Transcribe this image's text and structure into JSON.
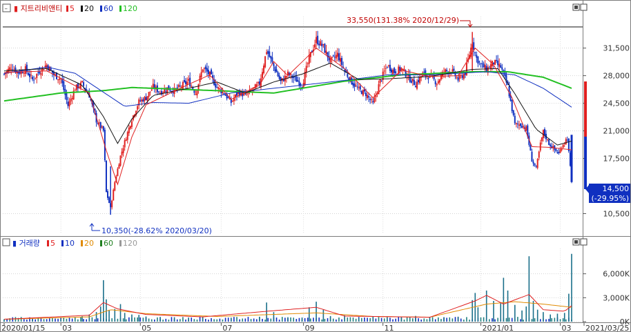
{
  "chart_data": {
    "type": "candlestick",
    "price": {
      "title": "지트리비앤티",
      "ma_legend": [
        {
          "label": "5",
          "color": "#e02020"
        },
        {
          "label": "20",
          "color": "#111111"
        },
        {
          "label": "60",
          "color": "#1030c0"
        },
        {
          "label": "120",
          "color": "#22c022"
        }
      ],
      "y_ticks": [
        "31,500",
        "28,000",
        "24,500",
        "21,000",
        "17,500",
        "10,500"
      ],
      "ylim": [
        8000,
        35500
      ],
      "current_price": "14,500",
      "current_change": "(-29.95%)",
      "high_annotation": "33,550(131.38% 2020/12/29)",
      "low_annotation": "10,350(-28.62% 2020/03/20)",
      "close_path": [
        [
          0,
          28200
        ],
        [
          5,
          29100
        ],
        [
          10,
          28400
        ],
        [
          15,
          28800
        ],
        [
          20,
          27500
        ],
        [
          25,
          28600
        ],
        [
          30,
          29400
        ],
        [
          35,
          28100
        ],
        [
          40,
          27600
        ],
        [
          45,
          24200
        ],
        [
          50,
          26400
        ],
        [
          55,
          27000
        ],
        [
          60,
          25500
        ],
        [
          65,
          22300
        ],
        [
          70,
          21000
        ],
        [
          72,
          13200
        ],
        [
          75,
          11200
        ],
        [
          78,
          14500
        ],
        [
          82,
          17800
        ],
        [
          86,
          20200
        ],
        [
          90,
          22500
        ],
        [
          95,
          24700
        ],
        [
          100,
          25200
        ],
        [
          105,
          26600
        ],
        [
          110,
          25900
        ],
        [
          115,
          26400
        ],
        [
          120,
          26100
        ],
        [
          125,
          26700
        ],
        [
          130,
          27300
        ],
        [
          135,
          25800
        ],
        [
          140,
          29000
        ],
        [
          145,
          28100
        ],
        [
          150,
          26500
        ],
        [
          155,
          25800
        ],
        [
          160,
          24600
        ],
        [
          165,
          25900
        ],
        [
          170,
          25500
        ],
        [
          175,
          26200
        ],
        [
          180,
          27000
        ],
        [
          185,
          31200
        ],
        [
          190,
          29200
        ],
        [
          195,
          27200
        ],
        [
          200,
          28200
        ],
        [
          205,
          27600
        ],
        [
          210,
          26800
        ],
        [
          215,
          30200
        ],
        [
          220,
          32600
        ],
        [
          225,
          31600
        ],
        [
          230,
          29800
        ],
        [
          235,
          30700
        ],
        [
          240,
          28600
        ],
        [
          245,
          27200
        ],
        [
          250,
          26200
        ],
        [
          255,
          25700
        ],
        [
          260,
          24400
        ],
        [
          265,
          27300
        ],
        [
          270,
          29300
        ],
        [
          275,
          28500
        ],
        [
          280,
          28900
        ],
        [
          285,
          27800
        ],
        [
          290,
          26900
        ],
        [
          295,
          28200
        ],
        [
          300,
          27900
        ],
        [
          305,
          27100
        ],
        [
          310,
          28500
        ],
        [
          315,
          28700
        ],
        [
          320,
          27500
        ],
        [
          325,
          28400
        ],
        [
          330,
          32300
        ],
        [
          333,
          30200
        ],
        [
          336,
          29400
        ],
        [
          340,
          28800
        ],
        [
          345,
          29700
        ],
        [
          350,
          29100
        ],
        [
          355,
          26600
        ],
        [
          360,
          21800
        ],
        [
          364,
          21800
        ],
        [
          368,
          21300
        ],
        [
          372,
          17300
        ],
        [
          375,
          16200
        ],
        [
          378,
          19300
        ],
        [
          380,
          20900
        ],
        [
          384,
          19400
        ],
        [
          388,
          18600
        ],
        [
          391,
          18100
        ],
        [
          394,
          19400
        ],
        [
          397,
          20100
        ],
        [
          400,
          14500
        ]
      ],
      "ma5_path": [
        [
          0,
          28400
        ],
        [
          30,
          28600
        ],
        [
          60,
          25800
        ],
        [
          72,
          18500
        ],
        [
          80,
          14200
        ],
        [
          90,
          20200
        ],
        [
          100,
          24300
        ],
        [
          130,
          26900
        ],
        [
          145,
          28100
        ],
        [
          160,
          25000
        ],
        [
          180,
          26800
        ],
        [
          190,
          29800
        ],
        [
          200,
          28000
        ],
        [
          220,
          31500
        ],
        [
          240,
          28900
        ],
        [
          260,
          25200
        ],
        [
          280,
          28700
        ],
        [
          300,
          27900
        ],
        [
          320,
          28000
        ],
        [
          332,
          31500
        ],
        [
          345,
          29400
        ],
        [
          358,
          25200
        ],
        [
          372,
          19000
        ],
        [
          385,
          18900
        ],
        [
          400,
          18600
        ]
      ],
      "ma20_path": [
        [
          0,
          28600
        ],
        [
          30,
          28900
        ],
        [
          55,
          26800
        ],
        [
          70,
          22800
        ],
        [
          80,
          19400
        ],
        [
          90,
          22500
        ],
        [
          105,
          25500
        ],
        [
          130,
          26400
        ],
        [
          150,
          27200
        ],
        [
          170,
          25800
        ],
        [
          190,
          27200
        ],
        [
          210,
          28200
        ],
        [
          230,
          29600
        ],
        [
          250,
          27500
        ],
        [
          270,
          27600
        ],
        [
          300,
          27900
        ],
        [
          330,
          28800
        ],
        [
          348,
          28900
        ],
        [
          360,
          25700
        ],
        [
          375,
          21200
        ],
        [
          390,
          19200
        ],
        [
          400,
          19700
        ]
      ],
      "ma60_path": [
        [
          0,
          28300
        ],
        [
          30,
          29100
        ],
        [
          50,
          28300
        ],
        [
          70,
          25900
        ],
        [
          85,
          24100
        ],
        [
          105,
          24600
        ],
        [
          130,
          24500
        ],
        [
          160,
          25800
        ],
        [
          200,
          26600
        ],
        [
          240,
          27400
        ],
        [
          270,
          28100
        ],
        [
          300,
          28100
        ],
        [
          340,
          28500
        ],
        [
          360,
          28100
        ],
        [
          380,
          26400
        ],
        [
          400,
          24000
        ]
      ],
      "ma120_path": [
        [
          0,
          24800
        ],
        [
          40,
          25800
        ],
        [
          70,
          26100
        ],
        [
          90,
          26500
        ],
        [
          150,
          26100
        ],
        [
          190,
          25800
        ],
        [
          240,
          27300
        ],
        [
          280,
          28100
        ],
        [
          330,
          28500
        ],
        [
          355,
          28500
        ],
        [
          380,
          27800
        ],
        [
          400,
          26400
        ]
      ]
    },
    "volume": {
      "title": "거래량",
      "ma_legend": [
        {
          "label": "5",
          "color": "#e02020"
        },
        {
          "label": "10",
          "color": "#1030c0"
        },
        {
          "label": "20",
          "color": "#e08a00"
        },
        {
          "label": "60",
          "color": "#208020"
        },
        {
          "label": "120",
          "color": "#999999"
        }
      ],
      "y_ticks": [
        "6,000K",
        "3,000K",
        "0K"
      ],
      "ylim": [
        0,
        9000
      ],
      "spikes": [
        [
          0,
          120
        ],
        [
          20,
          280
        ],
        [
          40,
          360
        ],
        [
          55,
          680
        ],
        [
          60,
          900
        ],
        [
          65,
          1200
        ],
        [
          68,
          1900
        ],
        [
          70,
          5200
        ],
        [
          72,
          2800
        ],
        [
          74,
          1400
        ],
        [
          78,
          1600
        ],
        [
          82,
          2200
        ],
        [
          85,
          1100
        ],
        [
          90,
          900
        ],
        [
          95,
          850
        ],
        [
          100,
          650
        ],
        [
          110,
          600
        ],
        [
          120,
          560
        ],
        [
          130,
          520
        ],
        [
          140,
          620
        ],
        [
          160,
          500
        ],
        [
          180,
          620
        ],
        [
          185,
          2400
        ],
        [
          190,
          1200
        ],
        [
          200,
          560
        ],
        [
          210,
          520
        ],
        [
          215,
          1800
        ],
        [
          220,
          2500
        ],
        [
          225,
          1500
        ],
        [
          230,
          700
        ],
        [
          240,
          800
        ],
        [
          250,
          480
        ],
        [
          260,
          650
        ],
        [
          270,
          580
        ],
        [
          280,
          540
        ],
        [
          290,
          720
        ],
        [
          300,
          520
        ],
        [
          310,
          560
        ],
        [
          320,
          620
        ],
        [
          330,
          2700
        ],
        [
          332,
          3600
        ],
        [
          334,
          1800
        ],
        [
          340,
          3900
        ],
        [
          345,
          2600
        ],
        [
          350,
          2300
        ],
        [
          352,
          5500
        ],
        [
          355,
          3900
        ],
        [
          360,
          2100
        ],
        [
          365,
          1400
        ],
        [
          368,
          1900
        ],
        [
          370,
          8200
        ],
        [
          373,
          2600
        ],
        [
          376,
          1500
        ],
        [
          380,
          1200
        ],
        [
          385,
          900
        ],
        [
          390,
          1000
        ],
        [
          395,
          1100
        ],
        [
          398,
          3500
        ],
        [
          400,
          8500
        ]
      ],
      "ma5_path": [
        [
          0,
          300
        ],
        [
          60,
          800
        ],
        [
          70,
          2400
        ],
        [
          80,
          1600
        ],
        [
          100,
          900
        ],
        [
          140,
          600
        ],
        [
          185,
          1300
        ],
        [
          220,
          1800
        ],
        [
          240,
          700
        ],
        [
          300,
          550
        ],
        [
          332,
          2600
        ],
        [
          340,
          3300
        ],
        [
          352,
          2200
        ],
        [
          370,
          3400
        ],
        [
          380,
          1500
        ],
        [
          395,
          1300
        ],
        [
          400,
          2000
        ]
      ],
      "ma20_path": [
        [
          0,
          300
        ],
        [
          60,
          600
        ],
        [
          75,
          1500
        ],
        [
          100,
          1000
        ],
        [
          150,
          650
        ],
        [
          220,
          1100
        ],
        [
          260,
          650
        ],
        [
          300,
          560
        ],
        [
          340,
          2200
        ],
        [
          360,
          2500
        ],
        [
          380,
          2200
        ],
        [
          400,
          1800
        ]
      ]
    },
    "x_ticks": [
      "2020/01/15",
      "03",
      "05",
      "07",
      "09",
      "11",
      "2021/01",
      "03",
      "2021/03/25"
    ]
  }
}
